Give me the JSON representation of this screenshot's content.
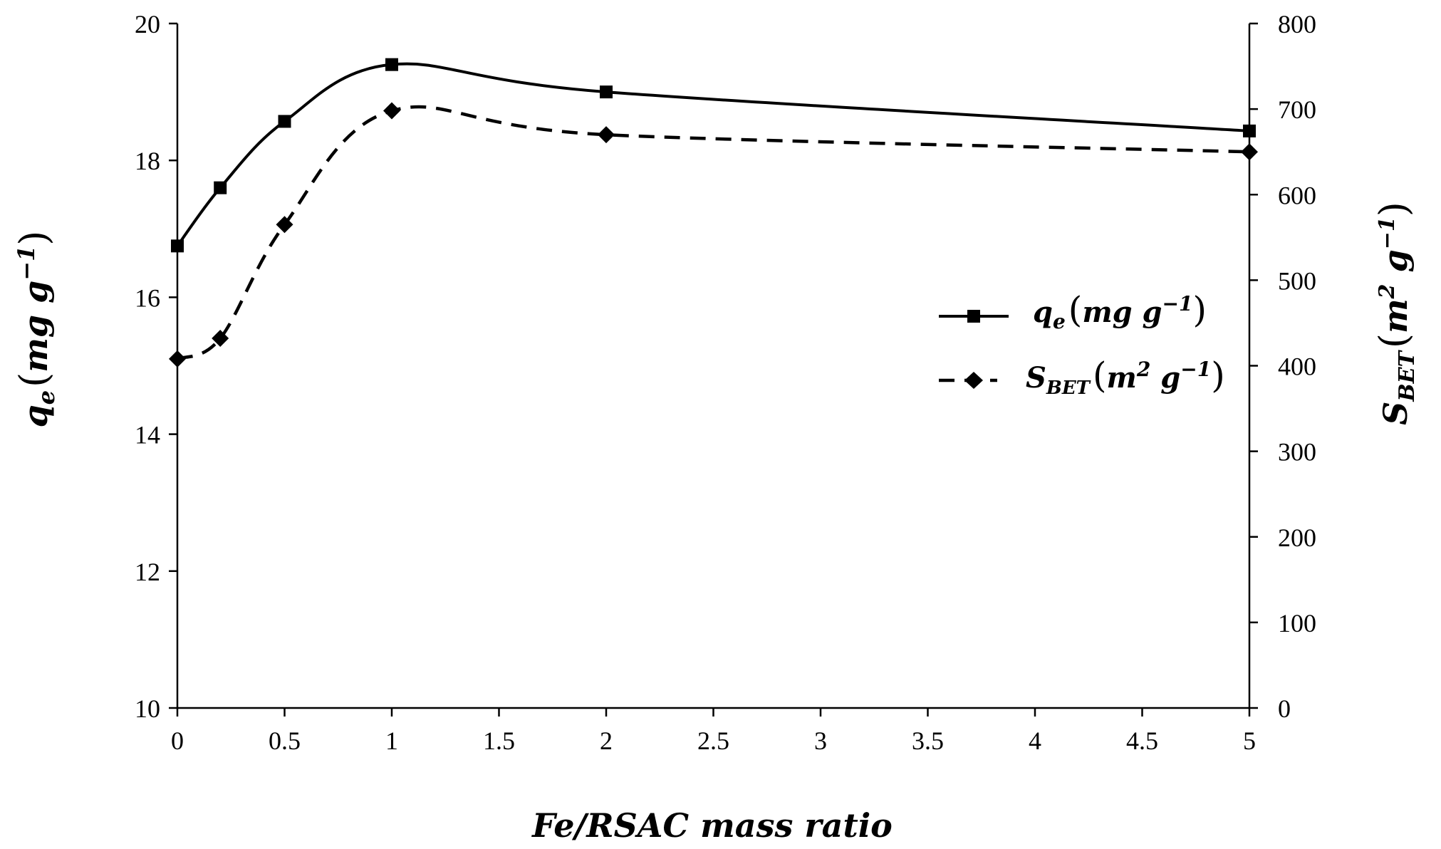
{
  "chart_data": {
    "type": "line",
    "x": [
      0,
      0.2,
      0.5,
      1,
      2,
      5
    ],
    "xlabel": "Fe/RSAC mass ratio",
    "xlim": [
      0,
      5
    ],
    "xticks": [
      0,
      0.5,
      1,
      1.5,
      2,
      2.5,
      3,
      3.5,
      4,
      4.5,
      5
    ],
    "xtick_labels": [
      "0",
      "0.5",
      "1",
      "1.5",
      "2",
      "2.5",
      "3",
      "3.5",
      "4",
      "4.5",
      "5"
    ],
    "ylabel_left": "qe (mg g−1)",
    "ylim_left": [
      10,
      20
    ],
    "yticks_left": [
      10,
      12,
      14,
      16,
      18,
      20
    ],
    "ytick_labels_left": [
      "10",
      "12",
      "14",
      "16",
      "18",
      "20"
    ],
    "ylabel_right": "SBET (m2 g−1)",
    "ylim_right": [
      0,
      800
    ],
    "yticks_right": [
      0,
      100,
      200,
      300,
      400,
      500,
      600,
      700,
      800
    ],
    "ytick_labels_right": [
      "0",
      "100",
      "200",
      "300",
      "400",
      "500",
      "600",
      "700",
      "800"
    ],
    "grid": false,
    "legend_position": "center-right",
    "series": [
      {
        "name": "qe (mg g−1)",
        "axis": "left",
        "line_style": "solid",
        "marker": "square",
        "values": [
          16.75,
          17.6,
          18.57,
          19.4,
          19.0,
          18.43
        ]
      },
      {
        "name": "SBET (m2 g−1)",
        "axis": "right",
        "line_style": "dashed",
        "marker": "diamond",
        "values": [
          408,
          432,
          565,
          698,
          670,
          650
        ]
      }
    ]
  },
  "labels": {
    "x_title": "Fe/RSAC mass ratio",
    "left_title_main": "q",
    "left_title_sub": "e",
    "left_title_unit_open": "(",
    "left_title_unit_body": "mg g",
    "left_title_unit_exp": "−1",
    "left_title_unit_close": ")",
    "right_title_main": "S",
    "right_title_sub": "BET",
    "right_title_unit_open": "(",
    "right_title_unit_body1": "m",
    "right_title_unit_exp1": "2",
    "right_title_unit_body2": " g",
    "right_title_unit_exp2": "−1",
    "right_title_unit_close": ")",
    "legend_qe_main": "q",
    "legend_qe_sub": "e",
    "legend_qe_unit_open": "(",
    "legend_qe_unit_body": "mg g",
    "legend_qe_unit_exp": "−1",
    "legend_qe_unit_close": ")",
    "legend_sbet_main": "S",
    "legend_sbet_sub": "BET",
    "legend_sbet_unit_open": "(",
    "legend_sbet_unit_body1": "m",
    "legend_sbet_unit_exp1": "2",
    "legend_sbet_unit_body2": " g",
    "legend_sbet_unit_exp2": "−1",
    "legend_sbet_unit_close": ")"
  }
}
